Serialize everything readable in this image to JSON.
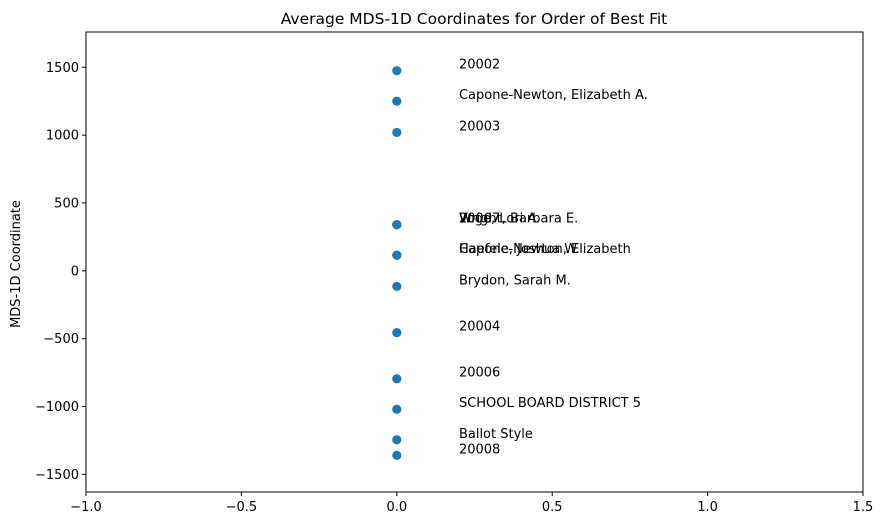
{
  "chart_data": {
    "type": "scatter",
    "title": "Average MDS-1D Coordinates for Order of Best Fit",
    "xlabel": "",
    "ylabel": "MDS-1D Coordinate",
    "xlim": [
      -1.0,
      1.5
    ],
    "ylim": [
      -1630,
      1760
    ],
    "xticks": [
      -1.0,
      -0.5,
      0.0,
      0.5,
      1.0,
      1.5
    ],
    "xtick_labels": [
      "−1.0",
      "−0.5",
      "0.0",
      "0.5",
      "1.0",
      "1.5"
    ],
    "yticks": [
      -1500,
      -1000,
      -500,
      0,
      500,
      1000,
      1500
    ],
    "ytick_labels": [
      "−1500",
      "−1000",
      "−500",
      "0",
      "500",
      "1000",
      "1500"
    ],
    "grid": false,
    "marker_color": "#1f77b4",
    "label_x": 0.2,
    "points": [
      {
        "label": "20002",
        "x": 0,
        "y": 1475
      },
      {
        "label": "Capone-Newton, Elizabeth A.",
        "x": 0,
        "y": 1250
      },
      {
        "label": "20003",
        "x": 0,
        "y": 1020
      },
      {
        "label": "Wright, Barbara E.",
        "x": 0,
        "y": 340
      },
      {
        "label": "Voge, Lori A.",
        "x": 0,
        "y": 340
      },
      {
        "label": "20007",
        "x": 0,
        "y": 340
      },
      {
        "label": "Capone-Newton, Elizabeth",
        "x": 0,
        "y": 115
      },
      {
        "label": "Haefele, Joshua W.",
        "x": 0,
        "y": 115
      },
      {
        "label": "Brydon, Sarah M.",
        "x": 0,
        "y": -115
      },
      {
        "label": "20004",
        "x": 0,
        "y": -455
      },
      {
        "label": "20006",
        "x": 0,
        "y": -795
      },
      {
        "label": "SCHOOL BOARD DISTRICT 5",
        "x": 0,
        "y": -1020
      },
      {
        "label": "Ballot Style",
        "x": 0,
        "y": -1245
      },
      {
        "label": "20008",
        "x": 0,
        "y": -1360
      }
    ]
  }
}
